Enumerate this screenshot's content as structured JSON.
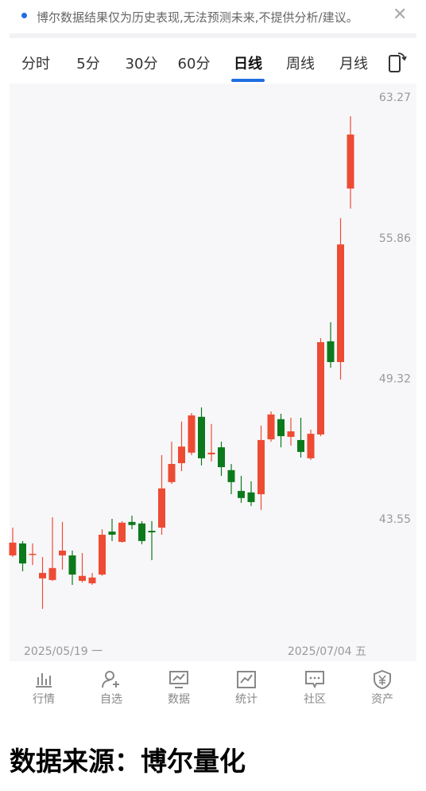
{
  "banner": {
    "text": "博尔数据结果仅为历史表现,无法预测未来,不提供分析/建议。"
  },
  "tabs": [
    "分时",
    "5分",
    "30分",
    "60分",
    "日线",
    "周线",
    "月线"
  ],
  "chart_data": {
    "type": "candlestick",
    "open": [
      42.19,
      42.64,
      42.22,
      41.34,
      41.28,
      42.19,
      42.19,
      41.25,
      41.16,
      41.48,
      43.09,
      42.7,
      43.46,
      43.4,
      43.12,
      43.24,
      45.02,
      45.78,
      46.21,
      47.7,
      46.14,
      46.43,
      45.5,
      44.67,
      44.61,
      44.54,
      46.76,
      47.6,
      46.86,
      46.73,
      45.98,
      46.96,
      51.0,
      50.07,
      58.39
    ],
    "high": [
      43.24,
      42.73,
      42.64,
      42.13,
      43.64,
      43.46,
      42.37,
      42.28,
      41.54,
      43.18,
      43.58,
      43.49,
      43.7,
      43.49,
      43.49,
      46.11,
      46.66,
      47.5,
      47.86,
      48.1,
      47.4,
      46.66,
      45.75,
      45.27,
      45.05,
      47.33,
      47.93,
      47.83,
      47.66,
      47.66,
      47.16,
      51.14,
      51.87,
      56.88,
      62.25
    ],
    "low": [
      42.13,
      41.6,
      41.83,
      40.24,
      41.25,
      41.66,
      41.1,
      41.19,
      41.1,
      41.43,
      42.73,
      42.67,
      43.18,
      42.61,
      42.01,
      42.97,
      44.95,
      45.46,
      46.11,
      45.69,
      45.85,
      45.27,
      44.54,
      44.2,
      44.08,
      43.92,
      46.66,
      46.43,
      46.5,
      46.01,
      45.91,
      46.89,
      49.82,
      49.3,
      57.36
    ],
    "close": [
      42.67,
      41.89,
      42.25,
      41.54,
      41.72,
      42.37,
      41.48,
      41.43,
      41.37,
      42.97,
      42.97,
      43.43,
      43.34,
      42.73,
      43.06,
      44.77,
      45.75,
      46.46,
      47.76,
      45.98,
      46.21,
      45.62,
      45.02,
      44.39,
      44.23,
      46.73,
      47.8,
      46.89,
      47.09,
      46.24,
      46.99,
      50.96,
      50.07,
      55.57,
      61.25
    ],
    "up_color": "#ee4b34",
    "down_color": "#0c7a1c",
    "log_scale": true,
    "ylim": [
      38.44,
      64.08
    ],
    "yticks": [
      43.55,
      49.32,
      55.86,
      63.27
    ],
    "grid": false,
    "date_start": "2025/05/19 一",
    "date_end": "2025/07/04 五"
  },
  "nav": [
    "行情",
    "自选",
    "数据",
    "统计",
    "社区",
    "资产"
  ],
  "footer": "数据来源：博尔量化"
}
